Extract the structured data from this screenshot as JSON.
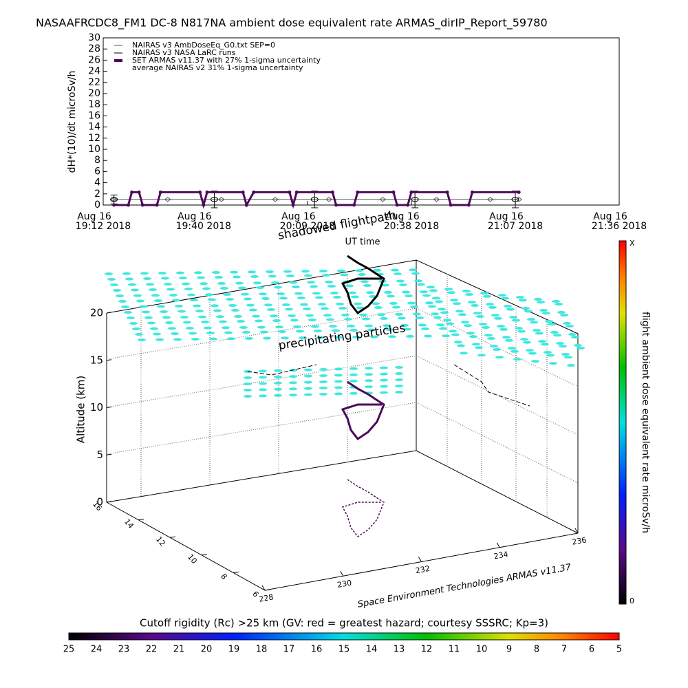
{
  "chart_data": [
    {
      "type": "line",
      "title": "NASAAFRCDC8_FM1 DC-8   N817NA ambient dose equivalent rate ARMAS_dirIP_Report_59780",
      "y_label": "dH*(10)/dt microSv/h",
      "x_label": "UT time",
      "xlim": [
        "2018-08-16T19:12",
        "2018-08-16T21:36"
      ],
      "xticks": [
        {
          "value": "2018-08-16T19:12",
          "label": [
            "Aug 16",
            "19:12 2018"
          ]
        },
        {
          "value": "2018-08-16T19:40",
          "label": [
            "Aug 16",
            "19:40 2018"
          ]
        },
        {
          "value": "2018-08-16T20:09",
          "label": [
            "Aug 16",
            "20:09 2018"
          ]
        },
        {
          "value": "2018-08-16T20:38",
          "label": [
            "Aug 16",
            "20:38 2018"
          ]
        },
        {
          "value": "2018-08-16T21:07",
          "label": [
            "Aug 16",
            "21:07 2018"
          ]
        },
        {
          "value": "2018-08-16T21:36",
          "label": [
            "Aug 16",
            "21:36 2018"
          ]
        }
      ],
      "ylim": [
        0,
        30
      ],
      "yticks": [
        0,
        2,
        4,
        6,
        8,
        10,
        12,
        14,
        16,
        18,
        20,
        22,
        24,
        26,
        28,
        30
      ],
      "series": [
        {
          "name": "NAIRAS v3 AmbDoseEq_G0.txt SEP=0",
          "color": "#555555",
          "marker": "diamond",
          "x": [
            "2018-08-16T19:15",
            "2018-08-16T19:30",
            "2018-08-16T19:45",
            "2018-08-16T20:00",
            "2018-08-16T20:15",
            "2018-08-16T20:30",
            "2018-08-16T20:45",
            "2018-08-16T21:00",
            "2018-08-16T21:08"
          ],
          "values": [
            1,
            1,
            1,
            1,
            1,
            1,
            1,
            1,
            1
          ]
        },
        {
          "name": "NAIRAS v3 NASA LaRC runs",
          "color": "#000000",
          "marker": "errorbar",
          "x": [
            "2018-08-16T19:15",
            "2018-08-16T19:43",
            "2018-08-16T20:11",
            "2018-08-16T20:39",
            "2018-08-16T21:07"
          ],
          "values": [
            1,
            1,
            1,
            1,
            1
          ],
          "errors": [
            0.8,
            1.5,
            1.5,
            1.5,
            1.5
          ]
        },
        {
          "name": "SET ARMAS v11.37 with 27% 1-sigma uncertainty",
          "color": "#4b0a5a",
          "marker": "dot",
          "x": [
            "2018-08-16T19:15",
            "2018-08-16T19:19",
            "2018-08-16T19:20",
            "2018-08-16T19:22",
            "2018-08-16T19:23",
            "2018-08-16T19:27",
            "2018-08-16T19:28",
            "2018-08-16T19:39",
            "2018-08-16T19:40",
            "2018-08-16T19:41",
            "2018-08-16T19:51",
            "2018-08-16T19:52",
            "2018-08-16T19:54",
            "2018-08-16T20:04",
            "2018-08-16T20:05",
            "2018-08-16T20:06",
            "2018-08-16T20:16",
            "2018-08-16T20:17",
            "2018-08-16T20:22",
            "2018-08-16T20:23",
            "2018-08-16T20:33",
            "2018-08-16T20:34",
            "2018-08-16T20:37",
            "2018-08-16T20:38",
            "2018-08-16T20:48",
            "2018-08-16T20:49",
            "2018-08-16T20:54",
            "2018-08-16T20:55",
            "2018-08-16T21:08"
          ],
          "values": [
            0,
            0,
            2.3,
            2.3,
            0,
            0,
            2.3,
            2.3,
            0,
            2.3,
            2.3,
            0,
            2.3,
            2.3,
            0,
            2.3,
            2.3,
            0,
            0,
            2.3,
            2.3,
            0,
            0,
            2.3,
            2.3,
            0,
            0,
            2.3,
            2.3
          ]
        }
      ],
      "legend_note": "average NAIRAS v2 31% 1-sigma uncertainty",
      "legend": "upper left"
    },
    {
      "type": "scatter3d",
      "z_label": "Altitude (km)",
      "zlim": [
        0,
        20
      ],
      "zticks": [
        0,
        5,
        10,
        15,
        20
      ],
      "latlim": [
        16,
        6
      ],
      "latticks": [
        6,
        8,
        10,
        12,
        14,
        16
      ],
      "lonlim": [
        228,
        236
      ],
      "lonticks": [
        228,
        230,
        232,
        234,
        236
      ],
      "annotations": [
        "shadowed flightpath",
        "precipitating particles"
      ],
      "credit": "Space Environment Technologies ARMAS v11.37"
    }
  ],
  "colorbars": {
    "dose": {
      "label": "flight ambient dose equivalent rate microSv/h",
      "max_label": "X",
      "min_label": "0"
    },
    "rigidity": {
      "title": "Cutoff rigidity (Rc) >25 km (GV: red = greatest hazard; courtesy SSSRC; Kp=3)",
      "ticks": [
        25,
        24,
        23,
        22,
        21,
        20,
        19,
        18,
        17,
        16,
        15,
        14,
        13,
        12,
        11,
        10,
        9,
        8,
        7,
        6,
        5
      ]
    }
  }
}
